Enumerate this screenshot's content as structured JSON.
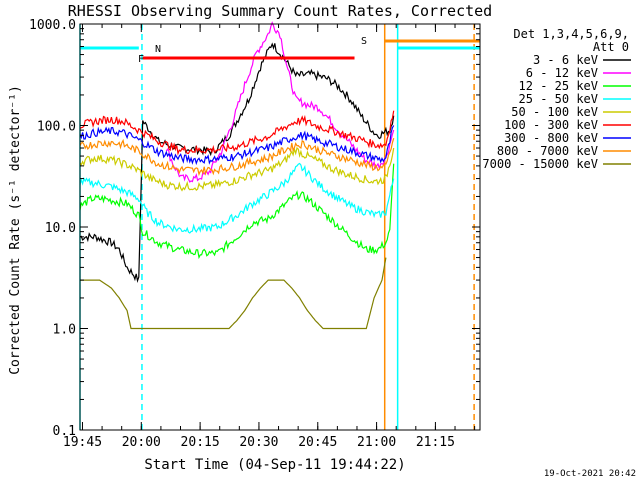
{
  "chart_data": {
    "type": "line",
    "title": "RHESSI Observing Summary Count Rates, Corrected",
    "xlabel": "Start Time (04-Sep-11 19:44:22)",
    "ylabel": "Corrected Count Rate (s⁻¹ detector⁻¹)",
    "yscale": "log",
    "ylim": [
      0.1,
      1000
    ],
    "xlim_min": [
      0,
      102
    ],
    "x_ticks": [
      "19:45",
      "20:00",
      "20:15",
      "20:30",
      "20:45",
      "21:00",
      "21:15"
    ],
    "y_ticks": [
      "0.1",
      "1.0",
      "10.0",
      "100.0",
      "1000.0"
    ],
    "legend_header": [
      "Det 1,3,4,5,6,9,",
      "Att 0"
    ],
    "legend_position": "right",
    "flag_labels": {
      "N": "N",
      "F": "F",
      "S": "S"
    },
    "footer_date": "19-Oct-2021 20:42",
    "series": [
      {
        "name": "3 - 6 keV",
        "color": "#000000",
        "points": [
          [
            0,
            8
          ],
          [
            4,
            8
          ],
          [
            8,
            7
          ],
          [
            10,
            6
          ],
          [
            12,
            4
          ],
          [
            15,
            3
          ],
          [
            16,
            110
          ],
          [
            20,
            70
          ],
          [
            25,
            60
          ],
          [
            30,
            58
          ],
          [
            34,
            55
          ],
          [
            38,
            80
          ],
          [
            43,
            180
          ],
          [
            46,
            380
          ],
          [
            49,
            650
          ],
          [
            52,
            460
          ],
          [
            55,
            310
          ],
          [
            59,
            320
          ],
          [
            63,
            290
          ],
          [
            66,
            240
          ],
          [
            69,
            180
          ],
          [
            72,
            120
          ],
          [
            75,
            85
          ],
          [
            76,
            80
          ],
          [
            79,
            90
          ],
          [
            80,
            125
          ]
        ]
      },
      {
        "name": "6 - 12 keV",
        "color": "#ff00ff",
        "points": [
          [
            22,
            60
          ],
          [
            24,
            40
          ],
          [
            26,
            30
          ],
          [
            30,
            30
          ],
          [
            33,
            35
          ],
          [
            36,
            55
          ],
          [
            39,
            110
          ],
          [
            42,
            250
          ],
          [
            45,
            520
          ],
          [
            48,
            800
          ],
          [
            49,
            1000
          ],
          [
            51,
            800
          ],
          [
            53,
            350
          ],
          [
            55,
            180
          ],
          [
            58,
            160
          ],
          [
            61,
            150
          ],
          [
            64,
            110
          ],
          [
            67,
            80
          ],
          [
            70,
            60
          ],
          [
            73,
            45
          ],
          [
            76,
            40
          ],
          [
            78,
            48
          ],
          [
            80,
            90
          ]
        ]
      },
      {
        "name": "12 - 25 keV",
        "color": "#00ff00",
        "points": [
          [
            0,
            16
          ],
          [
            3,
            19
          ],
          [
            6,
            19
          ],
          [
            9,
            18
          ],
          [
            12,
            17
          ],
          [
            15,
            13
          ],
          [
            16,
            9
          ],
          [
            20,
            7
          ],
          [
            25,
            6
          ],
          [
            30,
            5.5
          ],
          [
            35,
            5.5
          ],
          [
            40,
            8
          ],
          [
            44,
            11
          ],
          [
            48,
            12
          ],
          [
            51,
            15
          ],
          [
            54,
            19
          ],
          [
            56,
            21
          ],
          [
            58,
            19
          ],
          [
            61,
            15
          ],
          [
            65,
            11
          ],
          [
            69,
            8
          ],
          [
            73,
            6
          ],
          [
            76,
            6
          ],
          [
            78,
            7
          ],
          [
            79,
            9
          ],
          [
            80,
            42
          ]
        ]
      },
      {
        "name": "25 - 50 keV",
        "color": "#00ffff",
        "points": [
          [
            0,
            28
          ],
          [
            4,
            27
          ],
          [
            8,
            25
          ],
          [
            12,
            22
          ],
          [
            15,
            19
          ],
          [
            17,
            14
          ],
          [
            20,
            11
          ],
          [
            25,
            9.5
          ],
          [
            30,
            9.5
          ],
          [
            35,
            10
          ],
          [
            40,
            13
          ],
          [
            44,
            17
          ],
          [
            48,
            21
          ],
          [
            52,
            27
          ],
          [
            54,
            33
          ],
          [
            56,
            40
          ],
          [
            58,
            34
          ],
          [
            61,
            26
          ],
          [
            65,
            20
          ],
          [
            69,
            16
          ],
          [
            73,
            14
          ],
          [
            76,
            13
          ],
          [
            78,
            14
          ],
          [
            80,
            30
          ]
        ]
      },
      {
        "name": "50 - 100 keV",
        "color": "#cccc00",
        "points": [
          [
            0,
            44
          ],
          [
            4,
            48
          ],
          [
            8,
            46
          ],
          [
            12,
            41
          ],
          [
            15,
            36
          ],
          [
            18,
            30
          ],
          [
            22,
            26
          ],
          [
            26,
            25
          ],
          [
            30,
            25
          ],
          [
            35,
            26
          ],
          [
            40,
            29
          ],
          [
            44,
            33
          ],
          [
            48,
            36
          ],
          [
            52,
            44
          ],
          [
            55,
            58
          ],
          [
            57,
            52
          ],
          [
            60,
            46
          ],
          [
            64,
            38
          ],
          [
            68,
            33
          ],
          [
            72,
            30
          ],
          [
            75,
            28
          ],
          [
            77,
            29
          ],
          [
            78,
            30
          ],
          [
            80,
            60
          ]
        ]
      },
      {
        "name": "100 - 300 keV",
        "color": "#ff0000",
        "points": [
          [
            0,
            100
          ],
          [
            4,
            110
          ],
          [
            8,
            115
          ],
          [
            11,
            110
          ],
          [
            15,
            90
          ],
          [
            20,
            70
          ],
          [
            25,
            58
          ],
          [
            30,
            57
          ],
          [
            35,
            58
          ],
          [
            40,
            62
          ],
          [
            44,
            70
          ],
          [
            48,
            78
          ],
          [
            52,
            95
          ],
          [
            55,
            110
          ],
          [
            57,
            112
          ],
          [
            60,
            100
          ],
          [
            64,
            90
          ],
          [
            68,
            80
          ],
          [
            72,
            72
          ],
          [
            75,
            65
          ],
          [
            77,
            64
          ],
          [
            78,
            66
          ],
          [
            80,
            140
          ]
        ]
      },
      {
        "name": "300 - 800 keV",
        "color": "#0000ff",
        "points": [
          [
            0,
            78
          ],
          [
            4,
            85
          ],
          [
            8,
            88
          ],
          [
            11,
            85
          ],
          [
            15,
            72
          ],
          [
            20,
            55
          ],
          [
            25,
            48
          ],
          [
            30,
            46
          ],
          [
            35,
            47
          ],
          [
            40,
            50
          ],
          [
            44,
            55
          ],
          [
            48,
            60
          ],
          [
            52,
            70
          ],
          [
            55,
            78
          ],
          [
            57,
            80
          ],
          [
            60,
            72
          ],
          [
            64,
            65
          ],
          [
            68,
            58
          ],
          [
            72,
            52
          ],
          [
            75,
            48
          ],
          [
            77,
            46
          ],
          [
            78,
            48
          ],
          [
            80,
            100
          ]
        ]
      },
      {
        "name": "800 - 7000 keV",
        "color": "#ff8c00",
        "points": [
          [
            0,
            62
          ],
          [
            4,
            66
          ],
          [
            8,
            68
          ],
          [
            11,
            65
          ],
          [
            15,
            56
          ],
          [
            20,
            42
          ],
          [
            25,
            37
          ],
          [
            30,
            36
          ],
          [
            35,
            37
          ],
          [
            40,
            40
          ],
          [
            44,
            44
          ],
          [
            48,
            48
          ],
          [
            52,
            57
          ],
          [
            55,
            64
          ],
          [
            57,
            66
          ],
          [
            60,
            59
          ],
          [
            64,
            52
          ],
          [
            68,
            47
          ],
          [
            72,
            42
          ],
          [
            75,
            39
          ],
          [
            77,
            38
          ],
          [
            78,
            39
          ],
          [
            80,
            75
          ]
        ]
      },
      {
        "name": "7000 - 15000 keV",
        "color": "#808000",
        "points": [
          [
            0,
            3
          ],
          [
            5,
            3
          ],
          [
            8,
            2.5
          ],
          [
            10,
            2
          ],
          [
            12,
            1.5
          ],
          [
            13,
            1
          ],
          [
            20,
            1
          ],
          [
            30,
            1
          ],
          [
            38,
            1
          ],
          [
            40,
            1.2
          ],
          [
            42,
            1.5
          ],
          [
            44,
            2
          ],
          [
            46,
            2.5
          ],
          [
            48,
            3
          ],
          [
            52,
            3
          ],
          [
            54,
            2.5
          ],
          [
            56,
            2
          ],
          [
            58,
            1.5
          ],
          [
            60,
            1.2
          ],
          [
            62,
            1
          ],
          [
            68,
            1
          ],
          [
            72,
            1
          ],
          [
            73,
            1
          ],
          [
            75,
            2
          ],
          [
            77,
            3
          ],
          [
            78,
            5
          ]
        ]
      }
    ],
    "night_intervals": [
      [
        0,
        15
      ],
      [
        81,
        105
      ]
    ],
    "flare_interval": [
      16,
      70
    ],
    "saa_interval": [
      77.7,
      102
    ],
    "vlines": [
      {
        "x": 0,
        "color": "#00ffff",
        "style": "solid"
      },
      {
        "x": 15.8,
        "color": "#00ffff",
        "style": "dashed"
      },
      {
        "x": 77.7,
        "color": "#ff8c00",
        "style": "solid"
      },
      {
        "x": 81,
        "color": "#00ffff",
        "style": "solid"
      },
      {
        "x": 100.5,
        "color": "#ff8c00",
        "style": "dashed"
      }
    ]
  }
}
